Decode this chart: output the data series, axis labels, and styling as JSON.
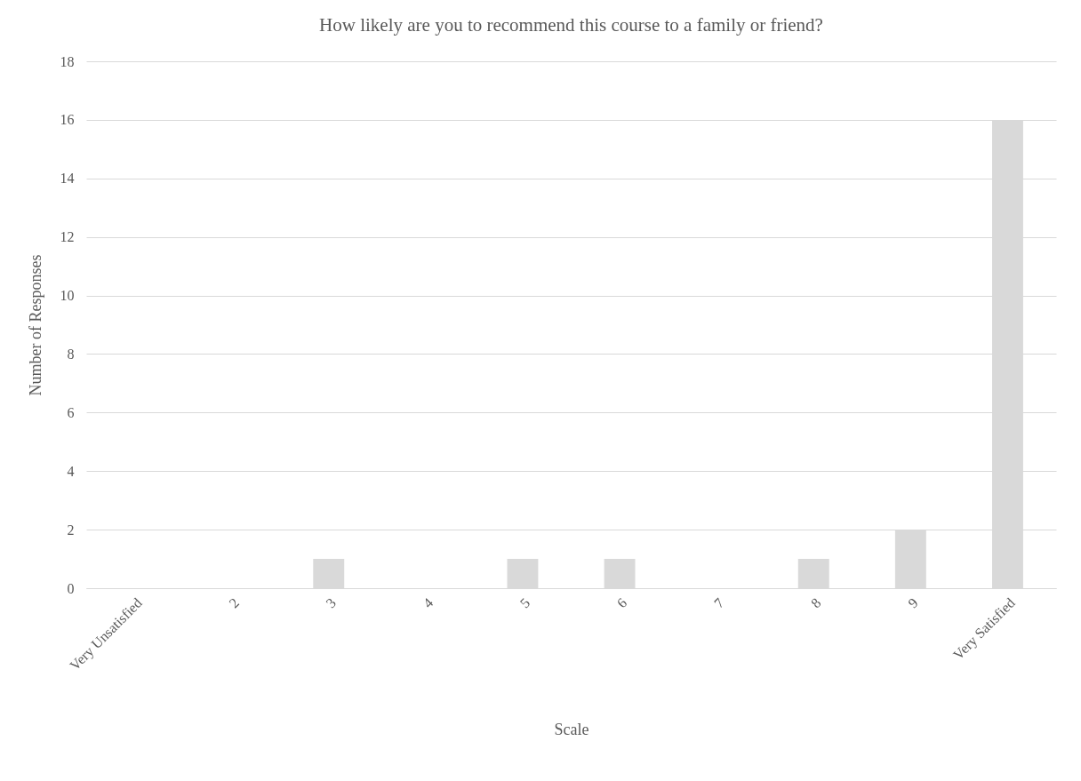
{
  "chart_data": {
    "type": "bar",
    "title": "How likely are you to recommend this course to a family or friend?",
    "xlabel": "Scale",
    "ylabel": "Number of Responses",
    "categories": [
      "Very Unsatisfied",
      "2",
      "3",
      "4",
      "5",
      "6",
      "7",
      "8",
      "9",
      "Very Satisfied"
    ],
    "values": [
      0,
      0,
      1,
      0,
      1,
      1,
      0,
      1,
      2,
      16
    ],
    "color": "#d9d9d9",
    "ylim": [
      0,
      18
    ],
    "yticks": [
      0,
      2,
      4,
      6,
      8,
      10,
      12,
      14,
      16,
      18
    ],
    "grid": "y"
  }
}
